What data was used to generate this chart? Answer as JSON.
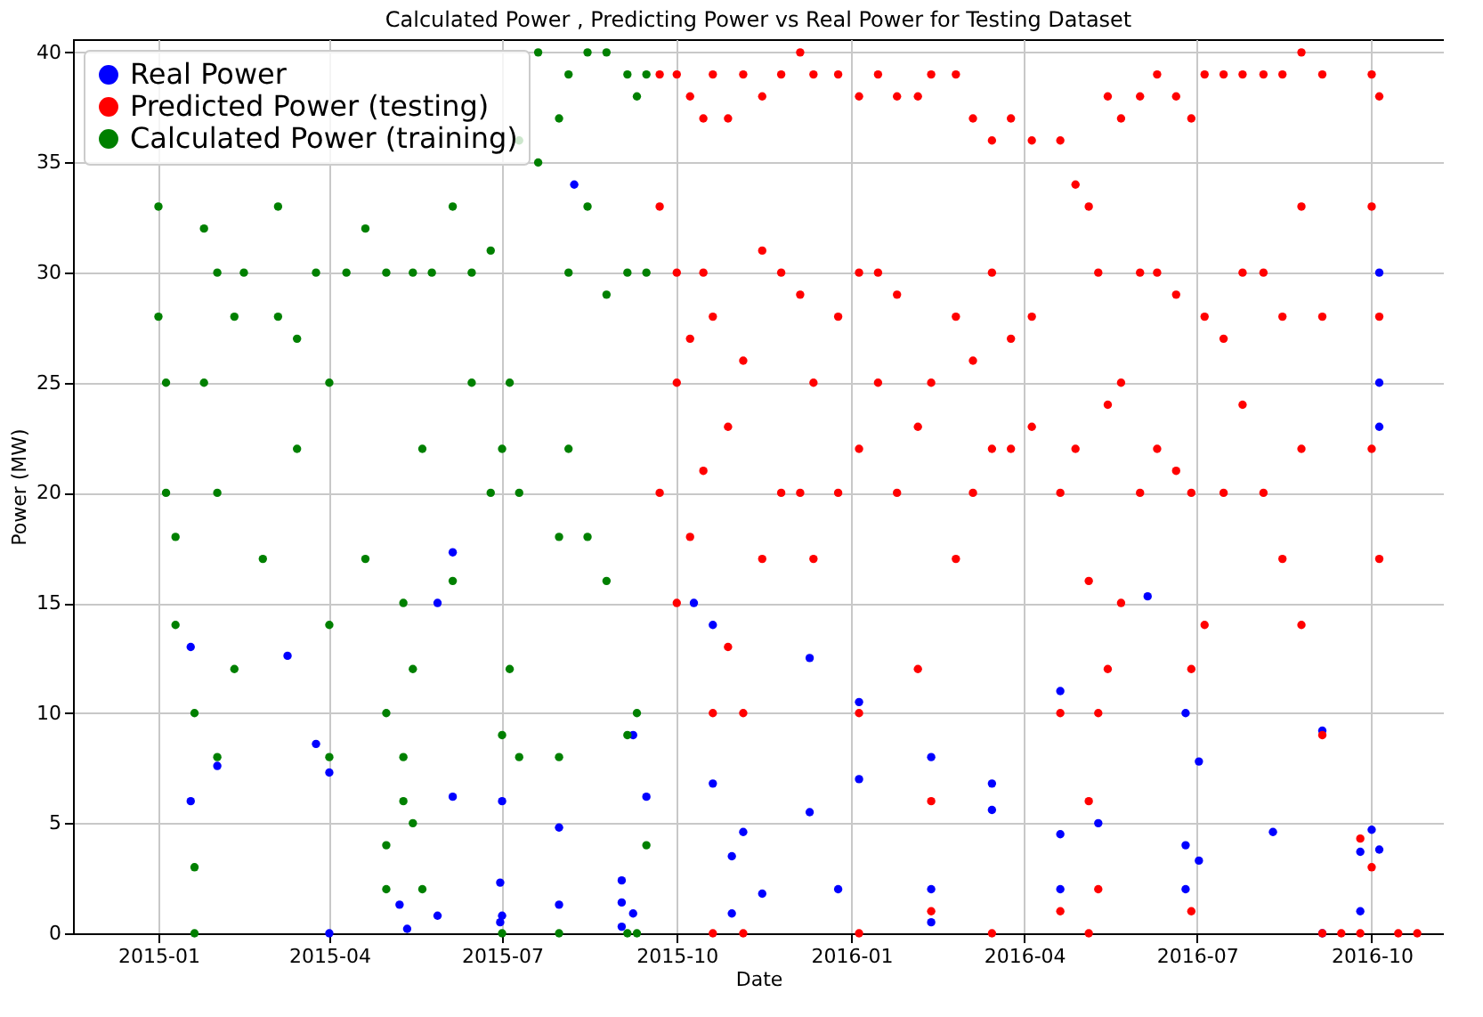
{
  "chart_data": {
    "type": "scatter",
    "title": "Calculated Power , Predicting Power vs Real Power for Testing Dataset",
    "xlabel": "Date",
    "ylabel": "Power (MW)",
    "xlim": [
      "2014-11-17",
      "2016-11-08"
    ],
    "ylim": [
      0,
      40.6
    ],
    "xticks": [
      "2015-01",
      "2015-04",
      "2015-07",
      "2015-10",
      "2016-01",
      "2016-04",
      "2016-07",
      "2016-10"
    ],
    "yticks": [
      0,
      5,
      10,
      15,
      20,
      25,
      30,
      35,
      40
    ],
    "grid": true,
    "legend": "top left",
    "marker": "circle",
    "series": [
      {
        "name": "Real Power",
        "color": "#0000ff",
        "x": [
          "2015-01-18",
          "2015-01-18",
          "2015-02-01",
          "2015-03-10",
          "2015-03-25",
          "2015-04-01",
          "2015-04-01",
          "2015-05-08",
          "2015-05-12",
          "2015-05-28",
          "2015-05-28",
          "2015-06-05",
          "2015-06-05",
          "2015-06-30",
          "2015-06-30",
          "2015-07-01",
          "2015-07-01",
          "2015-07-31",
          "2015-07-31",
          "2015-08-08",
          "2015-09-02",
          "2015-09-02",
          "2015-09-02",
          "2015-09-08",
          "2015-09-08",
          "2015-09-15",
          "2015-10-10",
          "2015-10-20",
          "2015-10-20",
          "2015-10-30",
          "2015-10-30",
          "2015-11-05",
          "2015-11-15",
          "2015-12-10",
          "2015-12-10",
          "2015-12-25",
          "2016-01-05",
          "2016-01-05",
          "2016-02-12",
          "2016-02-12",
          "2016-02-12",
          "2016-03-15",
          "2016-03-15",
          "2016-04-20",
          "2016-04-20",
          "2016-04-20",
          "2016-05-10",
          "2016-06-05",
          "2016-06-25",
          "2016-06-25",
          "2016-06-25",
          "2016-07-02",
          "2016-07-02",
          "2016-08-10",
          "2016-09-05",
          "2016-09-05",
          "2016-09-25",
          "2016-09-25",
          "2016-10-01",
          "2016-10-05",
          "2016-10-05",
          "2016-10-05",
          "2016-10-05"
        ],
        "values": [
          13,
          6,
          7.6,
          12.6,
          8.6,
          7.3,
          0,
          1.3,
          0.2,
          15,
          0.8,
          17.3,
          6.2,
          2.3,
          0.5,
          6,
          0.8,
          4.8,
          1.3,
          34,
          2.4,
          1.4,
          0.3,
          9,
          0.9,
          6.2,
          15,
          14,
          6.8,
          0.9,
          3.5,
          4.6,
          1.8,
          5.5,
          12.5,
          2,
          10.5,
          7,
          8,
          0.5,
          2,
          6.8,
          5.6,
          4.5,
          2,
          11,
          5,
          15.3,
          2,
          4,
          10,
          3.3,
          7.8,
          4.6,
          9.2,
          0,
          3.7,
          1,
          4.7,
          23,
          3.8,
          25,
          30
        ]
      },
      {
        "name": "Predicted Power (testing)",
        "color": "#ff0000",
        "x": [
          "2015-09-22",
          "2015-09-22",
          "2015-09-22",
          "2015-10-01",
          "2015-10-01",
          "2015-10-01",
          "2015-10-01",
          "2015-10-08",
          "2015-10-08",
          "2015-10-08",
          "2015-10-15",
          "2015-10-15",
          "2015-10-15",
          "2015-10-20",
          "2015-10-20",
          "2015-10-20",
          "2015-10-20",
          "2015-10-28",
          "2015-10-28",
          "2015-10-28",
          "2015-11-05",
          "2015-11-05",
          "2015-11-05",
          "2015-11-05",
          "2015-11-15",
          "2015-11-15",
          "2015-11-15",
          "2015-11-25",
          "2015-11-25",
          "2015-11-25",
          "2015-12-05",
          "2015-12-05",
          "2015-12-05",
          "2015-12-12",
          "2015-12-12",
          "2015-12-12",
          "2015-12-25",
          "2015-12-25",
          "2015-12-25",
          "2016-01-05",
          "2016-01-05",
          "2016-01-05",
          "2016-01-05",
          "2016-01-05",
          "2016-01-15",
          "2016-01-15",
          "2016-01-15",
          "2016-01-25",
          "2016-01-25",
          "2016-01-25",
          "2016-02-05",
          "2016-02-05",
          "2016-02-05",
          "2016-02-12",
          "2016-02-12",
          "2016-02-12",
          "2016-02-12",
          "2016-02-25",
          "2016-02-25",
          "2016-02-25",
          "2016-03-05",
          "2016-03-05",
          "2016-03-05",
          "2016-03-15",
          "2016-03-15",
          "2016-03-15",
          "2016-03-15",
          "2016-03-25",
          "2016-03-25",
          "2016-03-25",
          "2016-04-05",
          "2016-04-05",
          "2016-04-05",
          "2016-04-20",
          "2016-04-20",
          "2016-04-20",
          "2016-04-20",
          "2016-04-28",
          "2016-04-28",
          "2016-05-05",
          "2016-05-05",
          "2016-05-05",
          "2016-05-05",
          "2016-05-10",
          "2016-05-10",
          "2016-05-10",
          "2016-05-15",
          "2016-05-15",
          "2016-05-15",
          "2016-05-22",
          "2016-05-22",
          "2016-05-22",
          "2016-06-01",
          "2016-06-01",
          "2016-06-01",
          "2016-06-10",
          "2016-06-10",
          "2016-06-10",
          "2016-06-20",
          "2016-06-20",
          "2016-06-20",
          "2016-06-28",
          "2016-06-28",
          "2016-06-28",
          "2016-06-28",
          "2016-07-05",
          "2016-07-05",
          "2016-07-05",
          "2016-07-15",
          "2016-07-15",
          "2016-07-15",
          "2016-07-25",
          "2016-07-25",
          "2016-07-25",
          "2016-08-05",
          "2016-08-05",
          "2016-08-05",
          "2016-08-15",
          "2016-08-15",
          "2016-08-15",
          "2016-08-25",
          "2016-08-25",
          "2016-08-25",
          "2016-08-25",
          "2016-09-05",
          "2016-09-05",
          "2016-09-05",
          "2016-09-05",
          "2016-09-15",
          "2016-09-25",
          "2016-09-25",
          "2016-10-01",
          "2016-10-01",
          "2016-10-01",
          "2016-10-01",
          "2016-10-05",
          "2016-10-05",
          "2016-10-05",
          "2016-10-15",
          "2016-10-25"
        ],
        "values": [
          39,
          33,
          20,
          39,
          30,
          25,
          15,
          38,
          27,
          18,
          37,
          30,
          21,
          39,
          28,
          10,
          0,
          37,
          23,
          13,
          39,
          26,
          10,
          0,
          38,
          31,
          17,
          39,
          30,
          20,
          40,
          29,
          20,
          39,
          25,
          17,
          39,
          28,
          20,
          38,
          30,
          22,
          10,
          0,
          39,
          30,
          25,
          38,
          29,
          20,
          38,
          23,
          12,
          39,
          25,
          6,
          1,
          39,
          28,
          17,
          37,
          26,
          20,
          36,
          30,
          22,
          0,
          37,
          27,
          22,
          36,
          28,
          23,
          36,
          20,
          10,
          1,
          34,
          22,
          33,
          16,
          6,
          0,
          30,
          10,
          2,
          38,
          24,
          12,
          37,
          25,
          15,
          38,
          30,
          20,
          39,
          30,
          22,
          38,
          29,
          21,
          37,
          20,
          12,
          1,
          39,
          28,
          14,
          39,
          27,
          20,
          39,
          30,
          24,
          39,
          30,
          20,
          39,
          28,
          17,
          40,
          33,
          22,
          14,
          39,
          28,
          9,
          0,
          0,
          0,
          4.3,
          39,
          33,
          22,
          3,
          38,
          28,
          17,
          0,
          0
        ]
      },
      {
        "name": "Calculated Power (training)",
        "color": "#008000",
        "x": [
          "2015-01-01",
          "2015-01-01",
          "2015-01-05",
          "2015-01-05",
          "2015-01-10",
          "2015-01-10",
          "2015-01-20",
          "2015-01-20",
          "2015-01-20",
          "2015-01-25",
          "2015-01-25",
          "2015-02-01",
          "2015-02-01",
          "2015-02-01",
          "2015-02-10",
          "2015-02-10",
          "2015-02-15",
          "2015-02-25",
          "2015-03-05",
          "2015-03-05",
          "2015-03-15",
          "2015-03-15",
          "2015-03-25",
          "2015-04-01",
          "2015-04-01",
          "2015-04-01",
          "2015-04-10",
          "2015-04-20",
          "2015-04-20",
          "2015-05-01",
          "2015-05-01",
          "2015-05-01",
          "2015-05-01",
          "2015-05-10",
          "2015-05-10",
          "2015-05-10",
          "2015-05-15",
          "2015-05-15",
          "2015-05-15",
          "2015-05-20",
          "2015-05-20",
          "2015-05-25",
          "2015-06-05",
          "2015-06-05",
          "2015-06-15",
          "2015-06-15",
          "2015-06-25",
          "2015-06-25",
          "2015-07-01",
          "2015-07-01",
          "2015-07-01",
          "2015-07-05",
          "2015-07-05",
          "2015-07-10",
          "2015-07-10",
          "2015-07-10",
          "2015-07-20",
          "2015-07-20",
          "2015-07-31",
          "2015-07-31",
          "2015-07-31",
          "2015-07-31",
          "2015-08-05",
          "2015-08-05",
          "2015-08-05",
          "2015-08-15",
          "2015-08-15",
          "2015-08-15",
          "2015-08-25",
          "2015-08-25",
          "2015-08-25",
          "2015-09-05",
          "2015-09-05",
          "2015-09-05",
          "2015-09-05",
          "2015-09-10",
          "2015-09-10",
          "2015-09-10",
          "2015-09-15",
          "2015-09-15",
          "2015-09-15"
        ],
        "values": [
          33,
          28,
          25,
          20,
          18,
          14,
          10,
          3,
          0,
          32,
          25,
          30,
          20,
          8,
          28,
          12,
          30,
          17,
          33,
          28,
          27,
          22,
          30,
          25,
          14,
          8,
          30,
          32,
          17,
          30,
          10,
          4,
          2,
          15,
          8,
          6,
          30,
          12,
          5,
          22,
          2,
          30,
          33,
          16,
          30,
          25,
          31,
          20,
          22,
          9,
          0,
          25,
          12,
          36,
          20,
          8,
          40,
          35,
          37,
          18,
          8,
          0,
          39,
          30,
          22,
          40,
          33,
          18,
          40,
          29,
          16,
          39,
          30,
          9,
          0,
          38,
          10,
          0,
          39,
          30,
          4
        ]
      }
    ]
  }
}
